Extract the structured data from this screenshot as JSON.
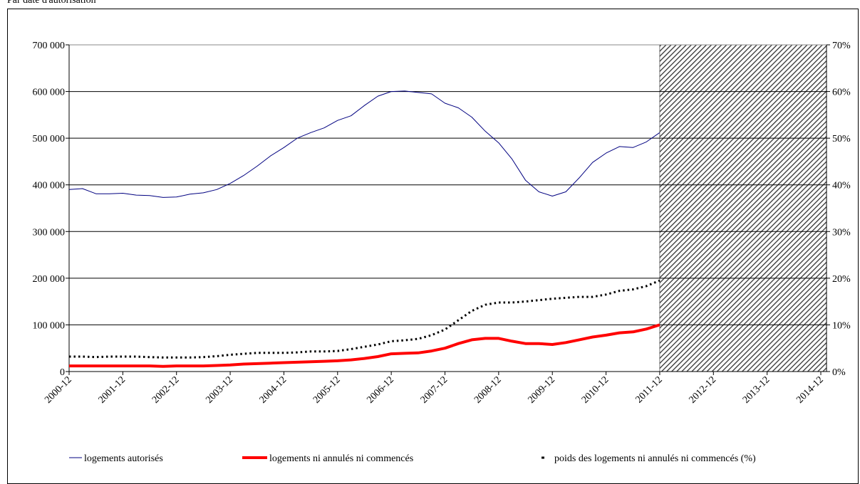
{
  "chart_data": {
    "type": "line",
    "title": "Par date d'autorisation",
    "categories": [
      "2000-12",
      null,
      null,
      null,
      "2001-12",
      null,
      null,
      null,
      "2002-12",
      null,
      null,
      null,
      "2003-12",
      null,
      null,
      null,
      "2004-12",
      null,
      null,
      null,
      "2005-12",
      null,
      null,
      null,
      "2006-12",
      null,
      null,
      null,
      "2007-12",
      null,
      null,
      null,
      "2008-12",
      null,
      null,
      null,
      "2009-12",
      null,
      null,
      null,
      "2010-12",
      null,
      null,
      null,
      "2011-12",
      null,
      null,
      null,
      "2012-12",
      null,
      null,
      null,
      "2013-12",
      null,
      null,
      null,
      "2014-12"
    ],
    "series": [
      {
        "name": "logements autorisés",
        "color": "#000080",
        "style": "thin",
        "values": [
          390000,
          392000,
          381000,
          381000,
          382000,
          378000,
          377000,
          373000,
          374000,
          380000,
          383000,
          390000,
          403000,
          420000,
          440000,
          462000,
          480000,
          500000,
          512000,
          522000,
          538000,
          548000,
          570000,
          590000,
          600000,
          601000,
          598000,
          595000,
          575000,
          565000,
          545000,
          515000,
          490000,
          455000,
          410000,
          385000,
          376000,
          385000,
          415000,
          448000,
          468000,
          482000,
          480000,
          492000,
          512000,
          null,
          null,
          null,
          null,
          null,
          null,
          null,
          null,
          null,
          null,
          null,
          null
        ]
      },
      {
        "name": "logements ni annulés ni commencés",
        "color": "#ff0000",
        "style": "thick",
        "values": [
          12000,
          12000,
          12000,
          12000,
          12000,
          12000,
          12000,
          11000,
          12000,
          12000,
          12000,
          13000,
          14000,
          16000,
          17000,
          18000,
          19000,
          20000,
          21000,
          22000,
          23000,
          25000,
          28000,
          32000,
          38000,
          39000,
          40000,
          44000,
          50000,
          60000,
          68000,
          71000,
          71000,
          65000,
          60000,
          60000,
          58000,
          62000,
          68000,
          74000,
          78000,
          83000,
          85000,
          91000,
          100000,
          null,
          null,
          null,
          null,
          null,
          null,
          null,
          null,
          null,
          null,
          null,
          null
        ]
      },
      {
        "name": "poids des logements ni annulés ni commencés (%)",
        "color": "#000000",
        "style": "dotted",
        "axis": "y2",
        "values": [
          3.2,
          3.2,
          3.1,
          3.2,
          3.2,
          3.2,
          3.1,
          3.0,
          3.0,
          3.0,
          3.1,
          3.3,
          3.6,
          3.8,
          4.0,
          4.0,
          4.0,
          4.1,
          4.3,
          4.3,
          4.4,
          4.8,
          5.3,
          5.8,
          6.5,
          6.7,
          7.0,
          7.8,
          9.0,
          11.0,
          13.0,
          14.3,
          14.8,
          14.8,
          15.0,
          15.3,
          15.6,
          15.8,
          16.0,
          16.0,
          16.5,
          17.3,
          17.6,
          18.3,
          19.5,
          null,
          null,
          null,
          null,
          null,
          null,
          null,
          null,
          null,
          null,
          null,
          null
        ]
      }
    ],
    "ylim": [
      0,
      700000
    ],
    "yticks": [
      {
        "value": 0,
        "label": "0"
      },
      {
        "value": 100000,
        "label": "100 000"
      },
      {
        "value": 200000,
        "label": "200 000"
      },
      {
        "value": 300000,
        "label": "300 000"
      },
      {
        "value": 400000,
        "label": "400 000"
      },
      {
        "value": 500000,
        "label": "500 000"
      },
      {
        "value": 600000,
        "label": "600 000"
      },
      {
        "value": 700000,
        "label": "700 000"
      }
    ],
    "y2lim": [
      0,
      70
    ],
    "y2ticks": [
      {
        "value": 0,
        "label": "0%"
      },
      {
        "value": 10,
        "label": "10%"
      },
      {
        "value": 20,
        "label": "20%"
      },
      {
        "value": 30,
        "label": "30%"
      },
      {
        "value": 40,
        "label": "40%"
      },
      {
        "value": 50,
        "label": "50%"
      },
      {
        "value": 60,
        "label": "60%"
      },
      {
        "value": 70,
        "label": "70%"
      }
    ],
    "grid": true,
    "legend": "bottom"
  }
}
